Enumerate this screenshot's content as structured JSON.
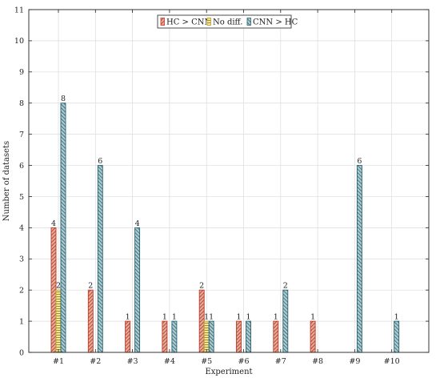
{
  "chart_data": {
    "type": "bar",
    "xlabel": "Experiment",
    "ylabel": "Number of datasets",
    "ylim": [
      0,
      11
    ],
    "yticks": [
      0,
      1,
      2,
      3,
      4,
      5,
      6,
      7,
      8,
      9,
      10,
      11
    ],
    "grid": true,
    "legend_position": "top-center",
    "categories": [
      "#1",
      "#2",
      "#3",
      "#4",
      "#5",
      "#6",
      "#7",
      "#8",
      "#9",
      "#10"
    ],
    "series": [
      {
        "name": "HC > CNN",
        "values": [
          4,
          2,
          1,
          1,
          2,
          1,
          1,
          1,
          0,
          0
        ],
        "color": "#c0392b",
        "fill": "#e8a894",
        "pattern": "north-east-lines"
      },
      {
        "name": "No diff.",
        "values": [
          2,
          0,
          0,
          0,
          1,
          0,
          0,
          0,
          0,
          0
        ],
        "color": "#b8a02a",
        "fill": "#f3e39a",
        "pattern": "horizontal-lines"
      },
      {
        "name": "CNN > HC",
        "values": [
          8,
          6,
          4,
          1,
          1,
          1,
          2,
          0,
          6,
          1
        ],
        "color": "#2c6470",
        "fill": "#a9cbd2",
        "pattern": "north-west-lines"
      }
    ]
  }
}
